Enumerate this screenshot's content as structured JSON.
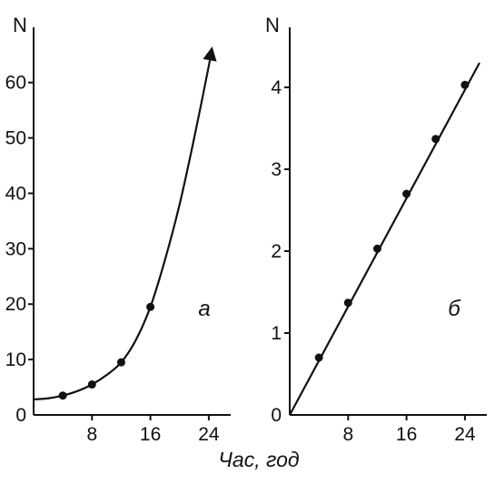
{
  "chart_data": [
    {
      "type": "line",
      "panel_label": "а",
      "ylabel": "N",
      "xlim": [
        0,
        27
      ],
      "ylim": [
        0,
        68
      ],
      "x_ticks": [
        8,
        16,
        24
      ],
      "y_ticks": [
        0,
        10,
        20,
        30,
        40,
        50,
        60
      ],
      "points": [
        {
          "x": 4,
          "y": 3.5
        },
        {
          "x": 8,
          "y": 5.5
        },
        {
          "x": 12,
          "y": 9.5
        },
        {
          "x": 16,
          "y": 19.5
        }
      ],
      "curve": [
        {
          "x": 0,
          "y": 2.8
        },
        {
          "x": 2,
          "y": 3.0
        },
        {
          "x": 4,
          "y": 3.5
        },
        {
          "x": 6,
          "y": 4.3
        },
        {
          "x": 8,
          "y": 5.5
        },
        {
          "x": 10,
          "y": 7.2
        },
        {
          "x": 12,
          "y": 9.5
        },
        {
          "x": 14,
          "y": 13.5
        },
        {
          "x": 16,
          "y": 19.5
        },
        {
          "x": 18,
          "y": 28
        },
        {
          "x": 20,
          "y": 38
        },
        {
          "x": 22,
          "y": 50
        },
        {
          "x": 24,
          "y": 63
        },
        {
          "x": 24.4,
          "y": 66
        }
      ],
      "arrow_end": true
    },
    {
      "type": "line",
      "panel_label": "б",
      "ylabel": "N",
      "xlim": [
        0,
        27
      ],
      "ylim": [
        0,
        4.6
      ],
      "x_ticks": [
        8,
        16,
        24
      ],
      "y_ticks": [
        0,
        1,
        2,
        3,
        4
      ],
      "points": [
        {
          "x": 4,
          "y": 0.7
        },
        {
          "x": 8,
          "y": 1.37
        },
        {
          "x": 12,
          "y": 2.03
        },
        {
          "x": 16,
          "y": 2.7
        },
        {
          "x": 20,
          "y": 3.37
        },
        {
          "x": 24,
          "y": 4.03
        }
      ],
      "curve": [
        {
          "x": 0,
          "y": 0
        },
        {
          "x": 26,
          "y": 4.3
        }
      ],
      "arrow_end": false
    }
  ],
  "xlabel": "Час, год"
}
